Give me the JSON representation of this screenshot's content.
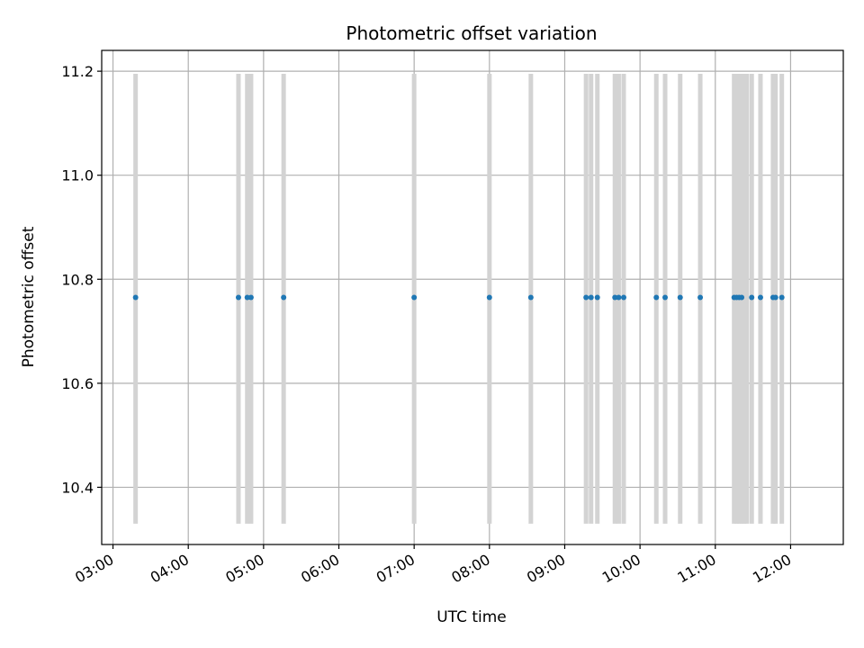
{
  "chart_data": {
    "type": "scatter",
    "title": "Photometric offset variation",
    "xlabel": "UTC time",
    "ylabel": "Photometric offset",
    "x_ticks": [
      "03:00",
      "04:00",
      "05:00",
      "06:00",
      "07:00",
      "08:00",
      "09:00",
      "10:00",
      "11:00",
      "12:00"
    ],
    "y_ticks": [
      "10.4",
      "10.6",
      "10.8",
      "11.0",
      "11.2"
    ],
    "xlim": [
      "02:51",
      "12:42"
    ],
    "ylim": [
      10.29,
      11.24
    ],
    "grid": true,
    "bands": {
      "ymin": 10.33,
      "ymax": 11.195,
      "color": "#d3d3d3",
      "x": [
        "03:18",
        "04:40",
        "04:47",
        "04:50",
        "05:16",
        "07:00",
        "08:00",
        "08:33",
        "09:17",
        "09:21",
        "09:26",
        "09:40",
        "09:43",
        "09:47",
        "10:13",
        "10:20",
        "10:32",
        "10:48",
        "11:15",
        "11:17",
        "11:19",
        "11:21",
        "11:23",
        "11:25",
        "11:29",
        "11:36",
        "11:46",
        "11:48",
        "11:53"
      ]
    },
    "series": [
      {
        "color": "#1f77b4",
        "x": [
          "03:18",
          "04:40",
          "04:47",
          "04:50",
          "05:16",
          "07:00",
          "08:00",
          "08:33",
          "09:17",
          "09:21",
          "09:26",
          "09:40",
          "09:43",
          "09:47",
          "10:13",
          "10:20",
          "10:32",
          "10:48",
          "11:15",
          "11:17",
          "11:19",
          "11:21",
          "11:29",
          "11:36",
          "11:46",
          "11:48",
          "11:53"
        ],
        "y": [
          10.765,
          10.765,
          10.765,
          10.765,
          10.765,
          10.765,
          10.765,
          10.765,
          10.765,
          10.765,
          10.765,
          10.765,
          10.765,
          10.765,
          10.765,
          10.765,
          10.765,
          10.765,
          10.765,
          10.765,
          10.765,
          10.765,
          10.765,
          10.765,
          10.765,
          10.765,
          10.765
        ]
      }
    ]
  }
}
